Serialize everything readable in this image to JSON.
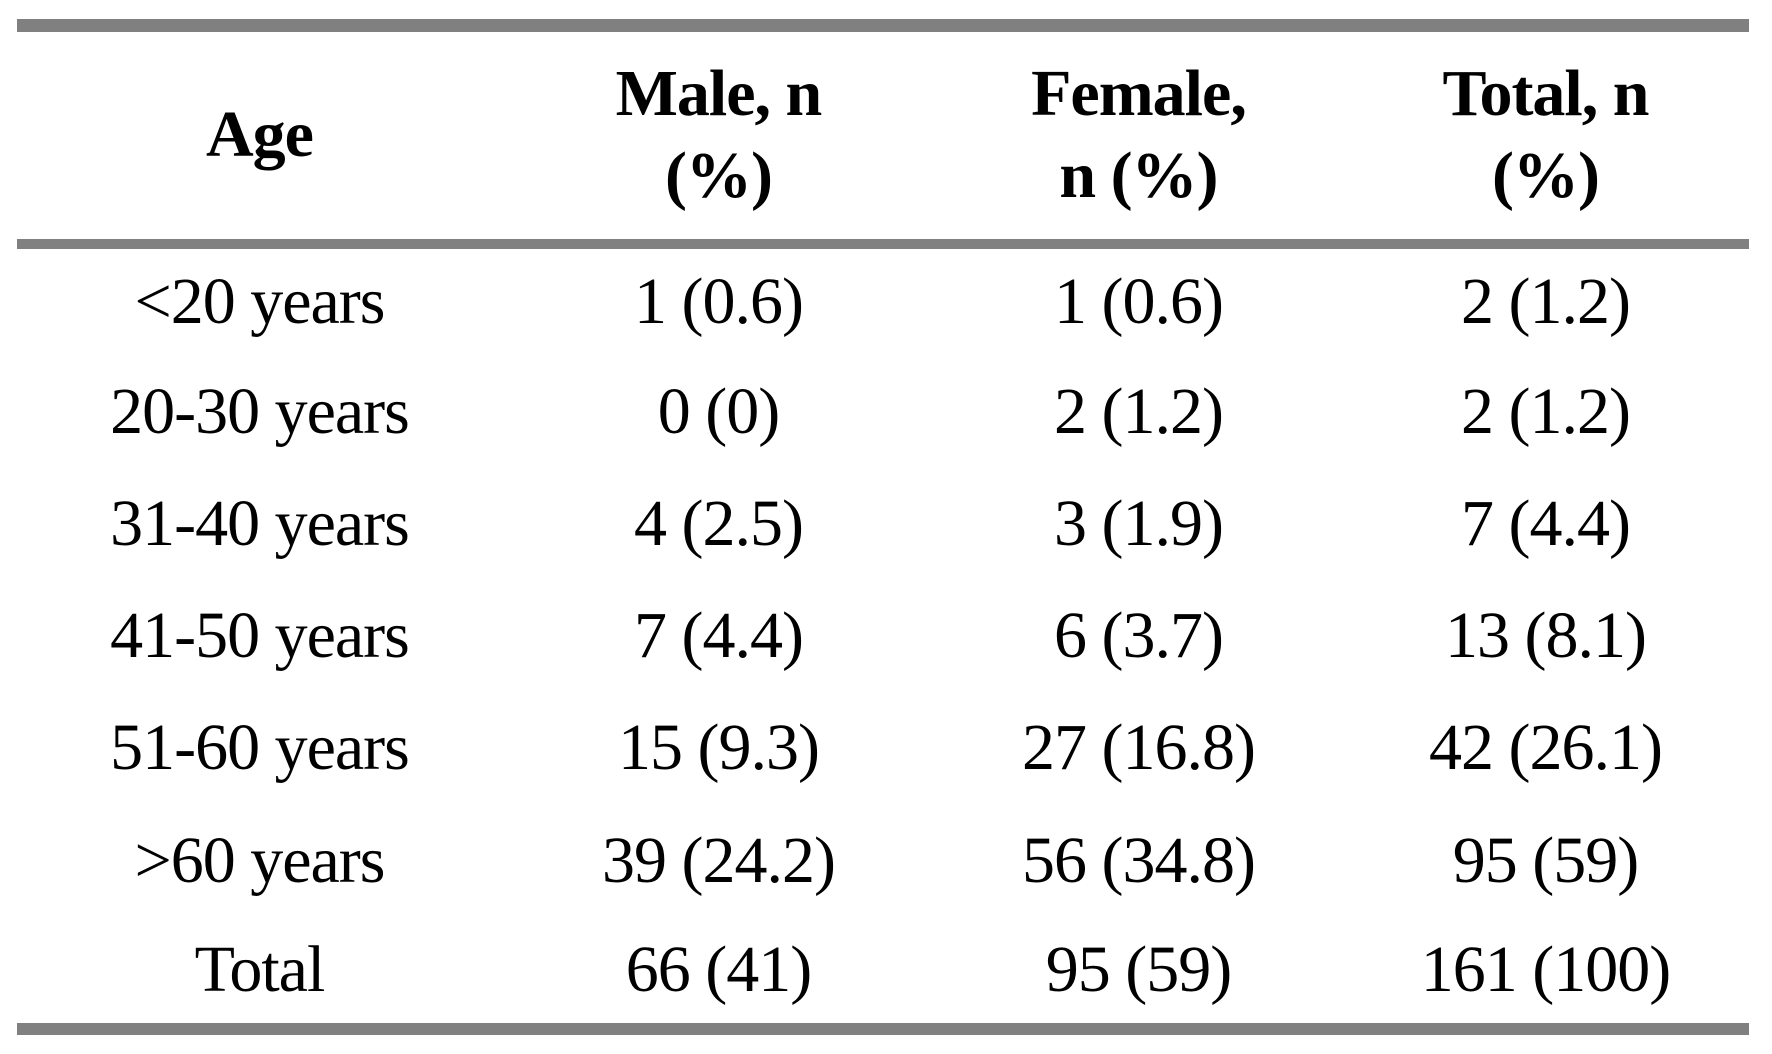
{
  "chart_data": {
    "type": "table",
    "columns": [
      "Age",
      "Male, n (%)",
      "Female, n (%)",
      "Total, n (%)"
    ],
    "rows": [
      [
        "<20 years",
        "1 (0.6)",
        "1 (0.6)",
        "2 (1.2)"
      ],
      [
        "20-30 years",
        "0 (0)",
        "2 (1.2)",
        "2 (1.2)"
      ],
      [
        "31-40 years",
        "4 (2.5)",
        "3 (1.9)",
        "7 (4.4)"
      ],
      [
        "41-50 years",
        "7 (4.4)",
        "6 (3.7)",
        "13 (8.1)"
      ],
      [
        "51-60 years",
        "15 (9.3)",
        "27 (16.8)",
        "42 (26.1)"
      ],
      [
        ">60 years",
        "39 (24.2)",
        "56 (34.8)",
        "95 (59)"
      ],
      [
        "Total",
        "66 (41)",
        "95 (59)",
        "161 (100)"
      ]
    ]
  },
  "header_display": {
    "age": "Age",
    "male": "Male, n\n(%)",
    "female": "Female,\nn (%)",
    "total": "Total, n\n(%)"
  },
  "colors": {
    "border_gray": "#808080",
    "text": "#000000",
    "background": "#ffffff"
  }
}
